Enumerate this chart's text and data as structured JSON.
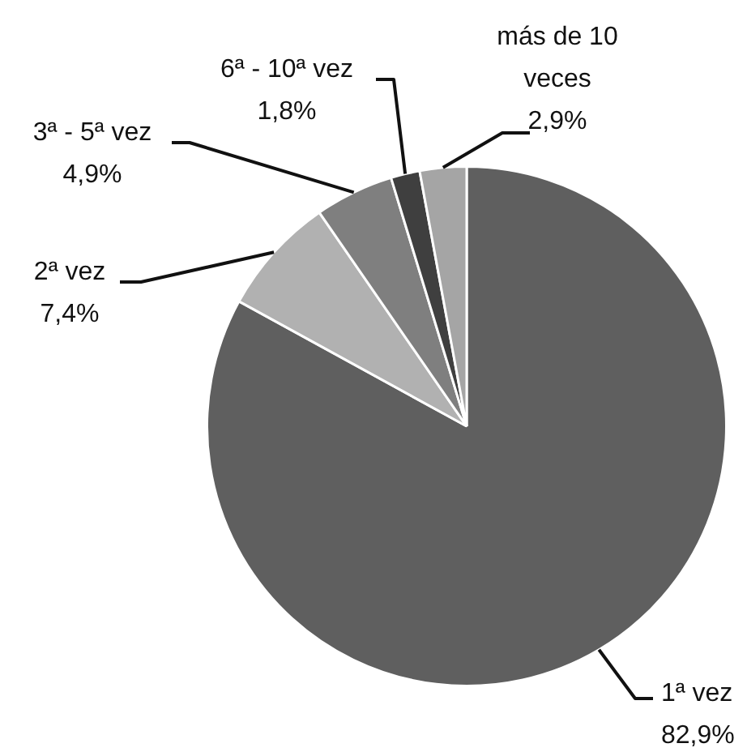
{
  "chart_data": {
    "type": "pie",
    "categories": [
      "1ª vez",
      "2ª vez",
      "3ª - 5ª vez",
      "6ª - 10ª vez",
      "más de 10 veces"
    ],
    "values": [
      82.9,
      7.4,
      4.9,
      1.8,
      2.9
    ],
    "colors": [
      "#5f5f5f",
      "#b1b1b1",
      "#7f7f7f",
      "#3f3f3f",
      "#a5a5a5"
    ],
    "value_labels": [
      "82,9%",
      "7,4%",
      "4,9%",
      "1,8%",
      "2,9%"
    ],
    "legend": false
  }
}
